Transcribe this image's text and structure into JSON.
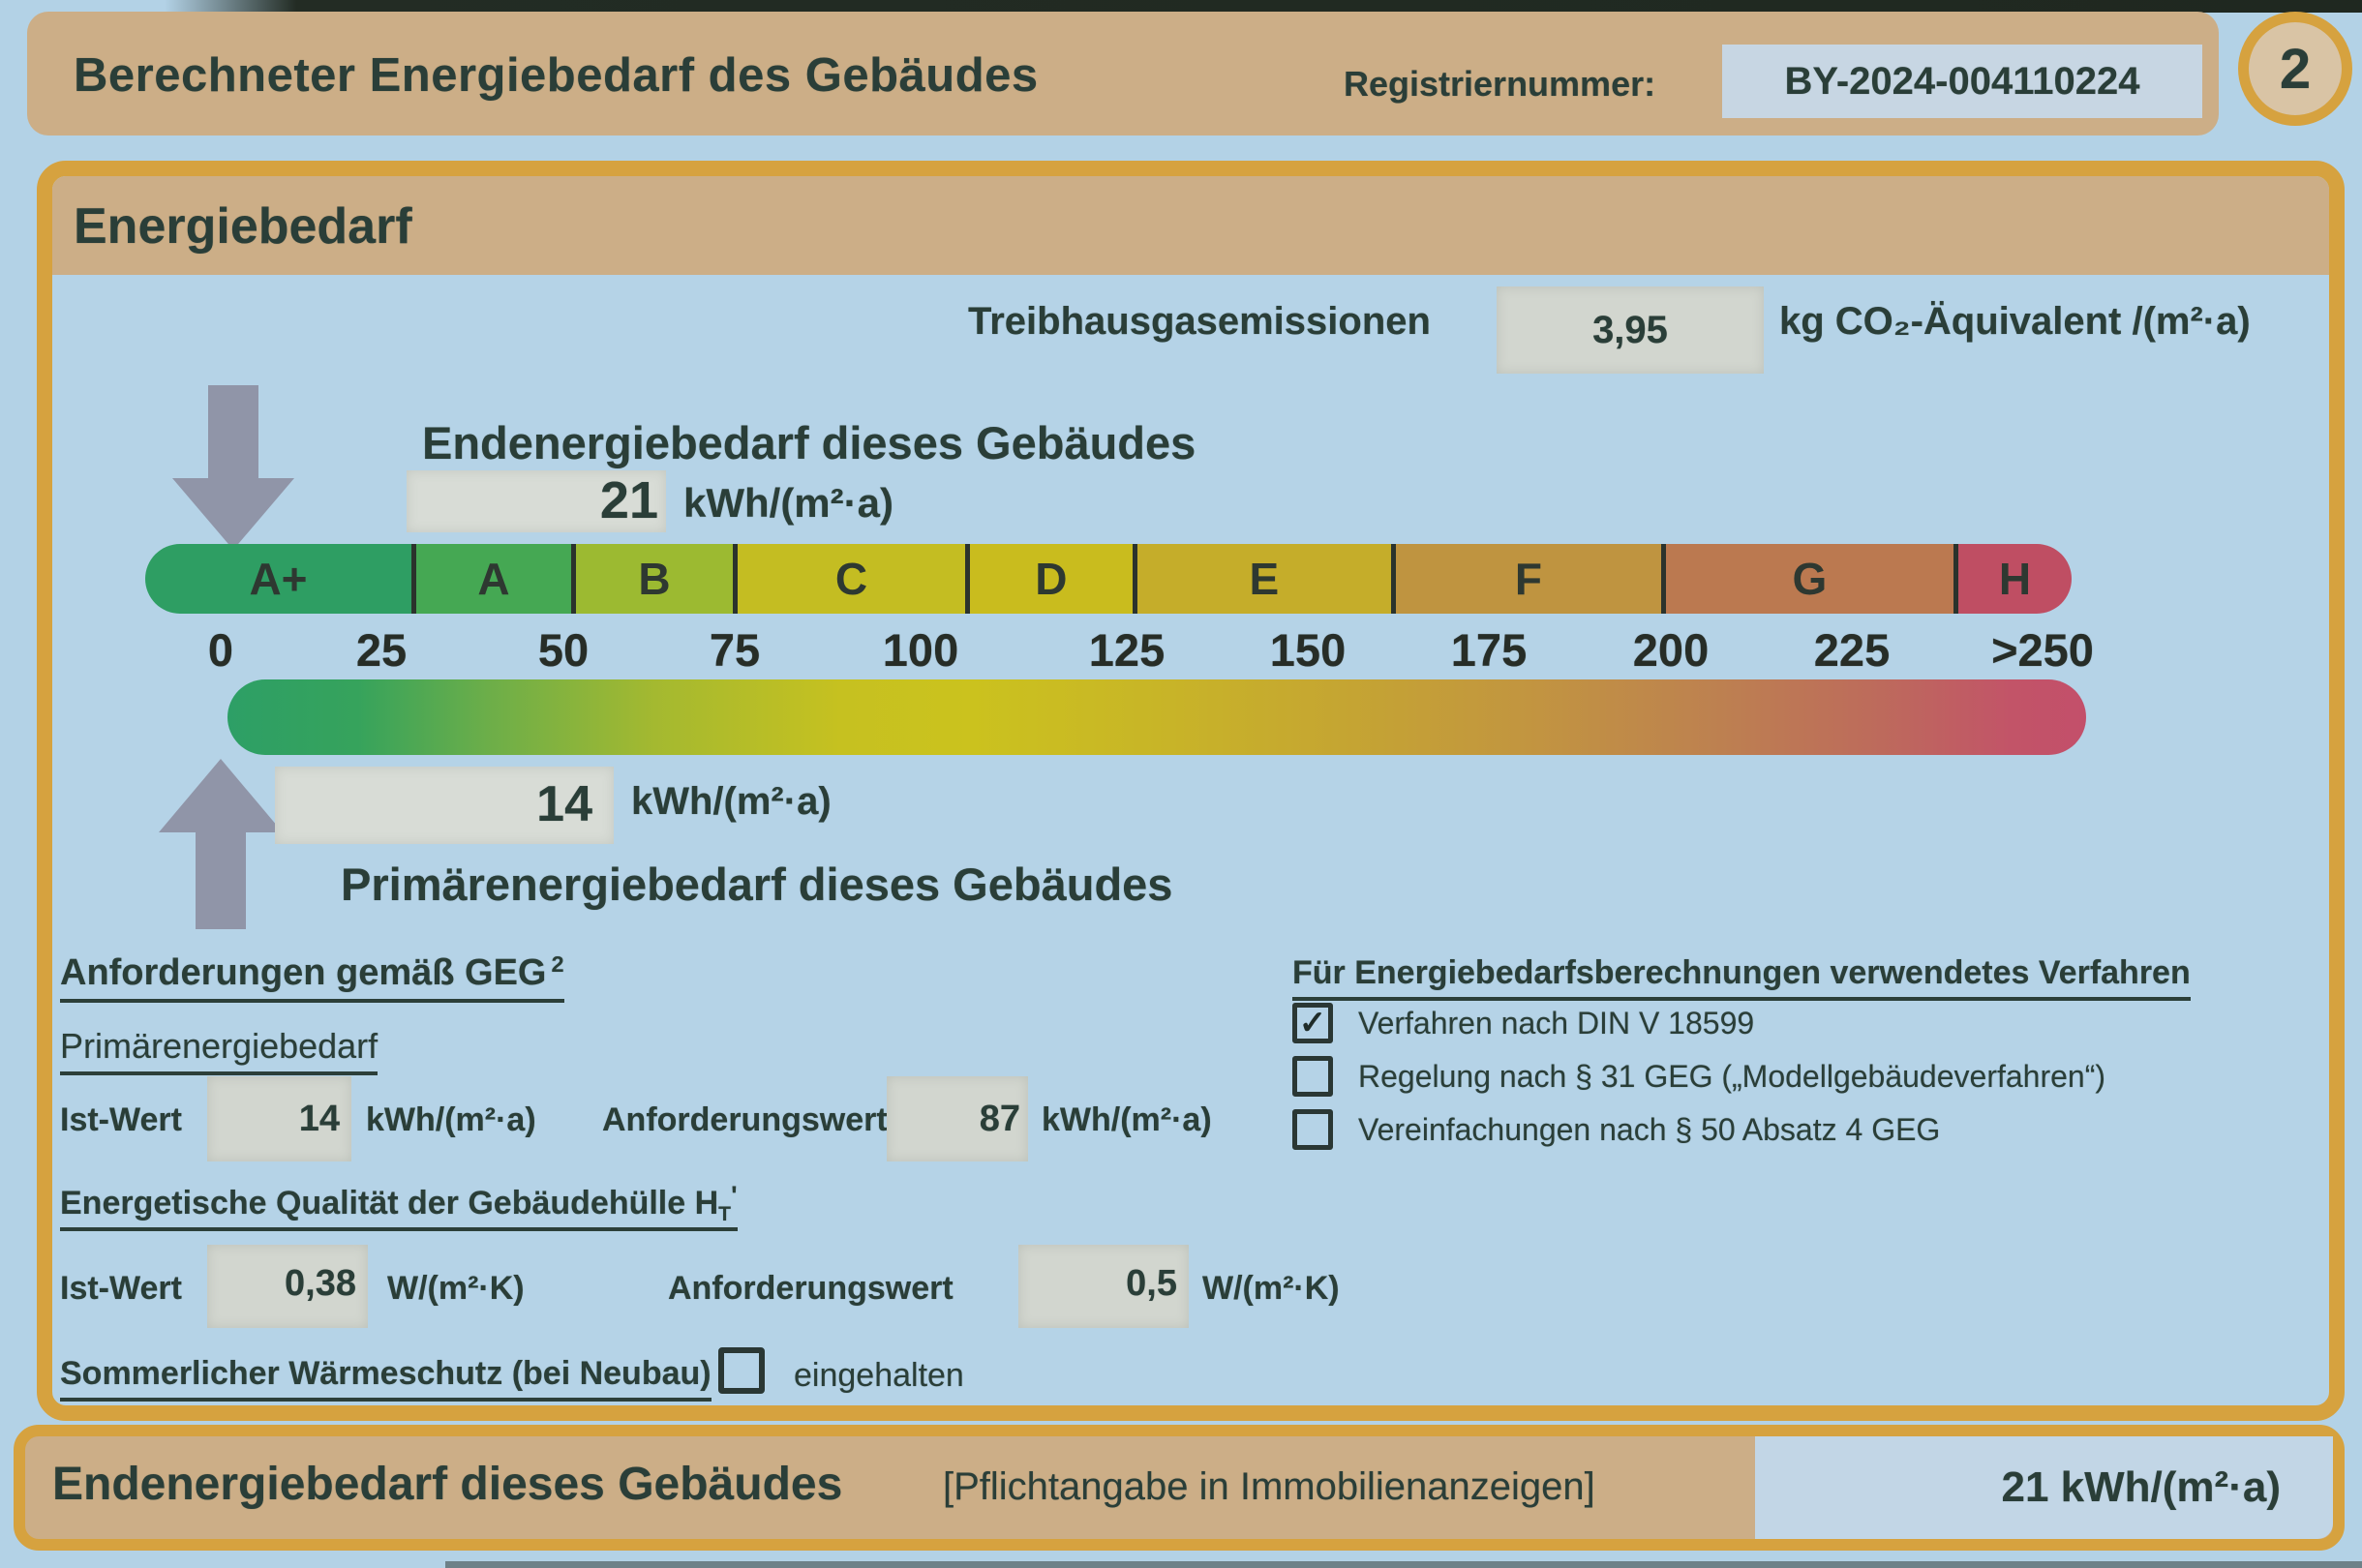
{
  "page": {
    "badge": "2"
  },
  "header": {
    "title": "Berechneter Energiebedarf des Gebäudes",
    "registry_label": "Registriernummer:",
    "registry_value": "BY-2024-004110224"
  },
  "section_title": "Energiebedarf",
  "emissions": {
    "label": "Treibhausgasemissionen",
    "value": "3,95",
    "unit": "kg CO₂-Äquivalent /(m²·a)"
  },
  "end_energy": {
    "label": "Endenergiebedarf dieses Gebäudes",
    "value": "21",
    "unit": "kWh/(m²·a)"
  },
  "primary_energy": {
    "label": "Primärenergiebedarf dieses Gebäudes",
    "value": "14",
    "unit": "kWh/(m²·a)"
  },
  "scale": {
    "classes": [
      {
        "label": "A+",
        "color": "#2e9e63",
        "width_pct": 13.82
      },
      {
        "label": "A",
        "color": "#45a853",
        "width_pct": 8.29
      },
      {
        "label": "B",
        "color": "#9cba31",
        "width_pct": 8.39
      },
      {
        "label": "C",
        "color": "#c4bd22",
        "width_pct": 12.06
      },
      {
        "label": "D",
        "color": "#c9bc1e",
        "width_pct": 8.69
      },
      {
        "label": "E",
        "color": "#c5ad2a",
        "width_pct": 13.42
      },
      {
        "label": "F",
        "color": "#bf9440",
        "width_pct": 14.02
      },
      {
        "label": "G",
        "color": "#bb7950",
        "width_pct": 15.18
      },
      {
        "label": "H",
        "color": "#bf4e63",
        "width_pct": 6.13
      }
    ],
    "ticks": [
      "0",
      "25",
      "50",
      "75",
      "100",
      "125",
      "150",
      "175",
      "200",
      "225",
      ">250"
    ]
  },
  "requirements": {
    "heading": "Anforderungen gemäß GEG",
    "heading_sup": "2",
    "primary_heading": "Primärenergiebedarf",
    "rows": {
      "primary": {
        "ist_label": "Ist-Wert",
        "ist_value": "14",
        "ist_unit": "kWh/(m²·a)",
        "req_label": "Anforderungswert",
        "req_value": "87",
        "req_unit": "kWh/(m²·a)"
      },
      "envelope": {
        "heading_main": "Energetische Qualität der Gebäudehülle H",
        "heading_sub": "T",
        "heading_mark": "'",
        "ist_label": "Ist-Wert",
        "ist_value": "0,38",
        "ist_unit": "W/(m²·K)",
        "req_label": "Anforderungswert",
        "req_value": "0,5",
        "req_unit": "W/(m²·K)"
      }
    },
    "summer": {
      "heading": "Sommerlicher Wärmeschutz (bei Neubau)",
      "label": "eingehalten",
      "checked": false
    }
  },
  "method": {
    "heading": "Für Energiebedarfsberechnungen verwendetes Verfahren",
    "options": [
      {
        "label": "Verfahren nach DIN V 18599",
        "checked": true
      },
      {
        "label": "Regelung nach § 31 GEG („Modellgebäudeverfahren“)",
        "checked": false
      },
      {
        "label": "Vereinfachungen nach § 50 Absatz 4 GEG",
        "checked": false
      }
    ]
  },
  "footer": {
    "title": "Endenergiebedarf dieses Gebäudes",
    "note": "[Pflichtangabe in Immobilienanzeigen]",
    "value": "21 kWh/(m²·a)"
  },
  "colors": {
    "accent_border": "#d6a23f",
    "bar_tan": "#ccae87",
    "page_bg": "#b3d2e6",
    "field_gray": "#d2d6cf",
    "field_blue": "#c7d6e3",
    "arrow_gray": "#9095a8",
    "text_dark": "#2a3e38"
  }
}
